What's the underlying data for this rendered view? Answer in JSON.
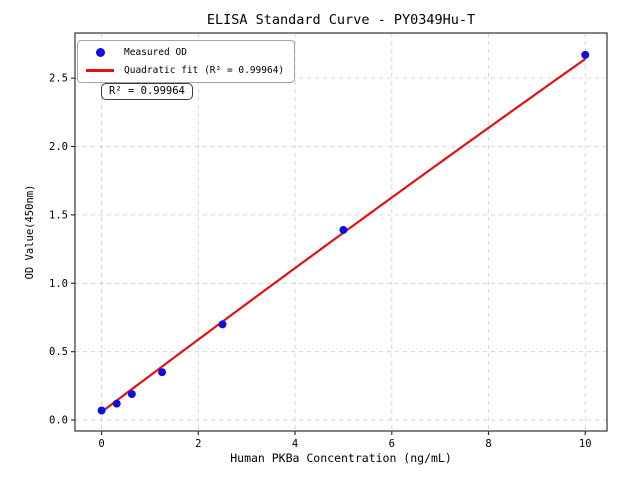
{
  "title": "ELISA Standard Curve - PY0349Hu-T",
  "annotation": {
    "text": "R² = 0.99964"
  },
  "legend": {
    "position": "upper left",
    "items": [
      {
        "label": "Measured OD",
        "marker": "dot",
        "color": "#0f0fdc"
      },
      {
        "label": "Quadratic fit (R² = 0.99964)",
        "marker": "line",
        "color": "#e31212"
      }
    ]
  },
  "colors": {
    "point": "#0f0fdc",
    "fit_line": "#e31212",
    "grid": "#cccccc",
    "spine": "#333333",
    "background": "#ffffff",
    "text": "#000000"
  },
  "chart_data": {
    "type": "scatter",
    "title": "ELISA Standard Curve - PY0349Hu-T",
    "xlabel": "Human PKBa Concentration (ng/mL)",
    "ylabel": "OD Value(450nm)",
    "grid": true,
    "legend_position": "upper left",
    "xlim": [
      -0.55,
      10.45
    ],
    "ylim": [
      -0.08,
      2.83
    ],
    "x_ticks": [
      0,
      2,
      4,
      6,
      8,
      10
    ],
    "x_tick_labels": [
      "0",
      "2",
      "4",
      "6",
      "8",
      "10"
    ],
    "y_ticks": [
      0.0,
      0.5,
      1.0,
      1.5,
      2.0,
      2.5
    ],
    "y_tick_labels": [
      "0.0",
      "0.5",
      "1.0",
      "1.5",
      "2.0",
      "2.5"
    ],
    "series": [
      {
        "name": "Measured OD",
        "type": "scatter",
        "color": "#0f0fdc",
        "x": [
          0,
          0.313,
          0.625,
          1.25,
          2.5,
          5,
          10
        ],
        "y": [
          0.07,
          0.12,
          0.19,
          0.35,
          0.7,
          1.39,
          2.67
        ]
      },
      {
        "name": "Quadratic fit (R² = 0.99964)",
        "type": "quadratic_fit",
        "color": "#e31212",
        "coefficients": {
          "a": -0.0008,
          "b": 0.266,
          "c": 0.06
        },
        "x_range": [
          0,
          10
        ],
        "r_squared": 0.99964
      }
    ]
  }
}
